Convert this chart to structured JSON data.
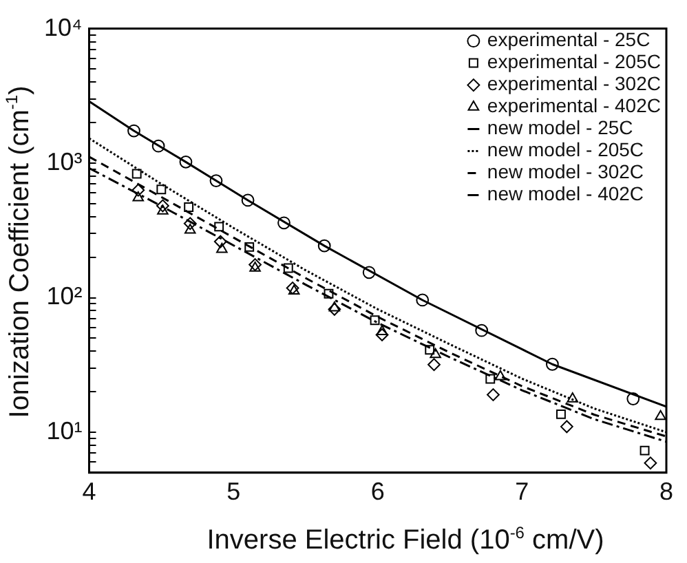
{
  "chart_data": {
    "type": "scatter",
    "xlabel": "Inverse Electric Field (10$^{-6}$ cm/V)",
    "ylabel": "Ionization Coefficient (cm$^{-1}$)",
    "xlim": [
      4,
      8
    ],
    "xticks": [
      4,
      5,
      6,
      7,
      8
    ],
    "ylim": [
      5,
      10000
    ],
    "log": "y",
    "yticks": [
      {
        "value": 5,
        "label": null
      },
      {
        "value": 6,
        "label": null
      },
      {
        "value": 7,
        "label": null
      },
      {
        "value": 8,
        "label": null
      },
      {
        "value": 9,
        "label": null
      },
      {
        "value": 10,
        "label": "10¹"
      },
      {
        "value": 20,
        "label": null
      },
      {
        "value": 30,
        "label": null
      },
      {
        "value": 40,
        "label": null
      },
      {
        "value": 50,
        "label": null
      },
      {
        "value": 60,
        "label": null
      },
      {
        "value": 70,
        "label": null
      },
      {
        "value": 80,
        "label": null
      },
      {
        "value": 90,
        "label": null
      },
      {
        "value": 100,
        "label": "10²"
      },
      {
        "value": 200,
        "label": null
      },
      {
        "value": 300,
        "label": null
      },
      {
        "value": 400,
        "label": null
      },
      {
        "value": 500,
        "label": null
      },
      {
        "value": 600,
        "label": null
      },
      {
        "value": 700,
        "label": null
      },
      {
        "value": 800,
        "label": null
      },
      {
        "value": 900,
        "label": null
      },
      {
        "value": 1000,
        "label": "10³"
      },
      {
        "value": 2000,
        "label": null
      },
      {
        "value": 3000,
        "label": null
      },
      {
        "value": 4000,
        "label": null
      },
      {
        "value": 5000,
        "label": null
      },
      {
        "value": 6000,
        "label": null
      },
      {
        "value": 7000,
        "label": null
      },
      {
        "value": 8000,
        "label": null
      },
      {
        "value": 9000,
        "label": null
      },
      {
        "value": 10000,
        "label": "10⁴"
      }
    ],
    "grid": false,
    "legend": "top right",
    "series": [
      {
        "name": "experimental - 25C",
        "type": "scatter",
        "marker": "circle",
        "color": "#000000",
        "x": [
          4.31,
          4.48,
          4.67,
          4.88,
          5.1,
          5.35,
          5.63,
          5.94,
          6.31,
          6.72,
          7.21,
          7.77
        ],
        "values": [
          1740,
          1340,
          1020,
          740,
          530,
          360,
          243,
          154,
          96,
          57,
          32,
          17.7
        ]
      },
      {
        "name": "experimental - 205C",
        "type": "scatter",
        "marker": "square",
        "color": "#000000",
        "x": [
          4.33,
          4.5,
          4.69,
          4.9,
          5.11,
          5.38,
          5.66,
          5.98,
          6.36,
          6.78,
          7.27,
          7.85
        ],
        "values": [
          834,
          638,
          471,
          337,
          238,
          166,
          107,
          68,
          41,
          24.9,
          13.6,
          7.3
        ]
      },
      {
        "name": "experimental - 302C",
        "type": "scatter",
        "marker": "diamond",
        "color": "#000000",
        "x": [
          4.34,
          4.51,
          4.7,
          4.91,
          5.15,
          5.41,
          5.7,
          6.03,
          6.39,
          6.8,
          7.31,
          7.89
        ],
        "values": [
          630,
          482,
          356,
          261,
          176,
          118,
          82,
          53,
          31.8,
          19,
          11,
          5.9
        ]
      },
      {
        "name": "experimental - 402C",
        "type": "scatter",
        "marker": "triangle",
        "color": "#000000",
        "x": [
          4.34,
          4.51,
          4.7,
          4.92,
          5.15,
          5.42,
          5.7,
          6.03,
          6.4,
          6.85,
          7.35,
          7.96
        ],
        "values": [
          553,
          441,
          318,
          229,
          166,
          112,
          84,
          56,
          37.8,
          25.9,
          17.7,
          13.1
        ]
      },
      {
        "name": "new model - 25C",
        "type": "line",
        "marker": "none",
        "line_style": "solid",
        "color": "#000000",
        "x": [
          4,
          4.31,
          4.67,
          5.1,
          5.63,
          6.31,
          7.21,
          8
        ],
        "values": [
          2880,
          1740,
          1020,
          530,
          243,
          96,
          32,
          15.5
        ]
      },
      {
        "name": "new model - 205C",
        "type": "line",
        "marker": "none",
        "line_style": "dotted",
        "color": "#000000",
        "x": [
          4,
          4.5,
          5,
          5.5,
          6,
          6.5,
          7,
          7.5,
          8
        ],
        "values": [
          1530,
          700,
          330,
          160,
          82,
          45,
          25,
          15,
          10
        ]
      },
      {
        "name": "new model - 302C",
        "type": "line",
        "marker": "none",
        "line_style": "dashed",
        "color": "#000000",
        "x": [
          4,
          4.5,
          5,
          5.5,
          6,
          6.5,
          7,
          7.5,
          8
        ],
        "values": [
          1115,
          560,
          280,
          140,
          72,
          39,
          22,
          13.5,
          9.3
        ]
      },
      {
        "name": "new model - 402C",
        "type": "line",
        "marker": "none",
        "line_style": "dashdot",
        "color": "#000000",
        "x": [
          4,
          4.5,
          5,
          5.5,
          6,
          6.5,
          7,
          7.5,
          8
        ],
        "values": [
          918,
          480,
          245,
          125,
          65,
          36,
          20.5,
          12.5,
          8.5
        ]
      }
    ]
  }
}
